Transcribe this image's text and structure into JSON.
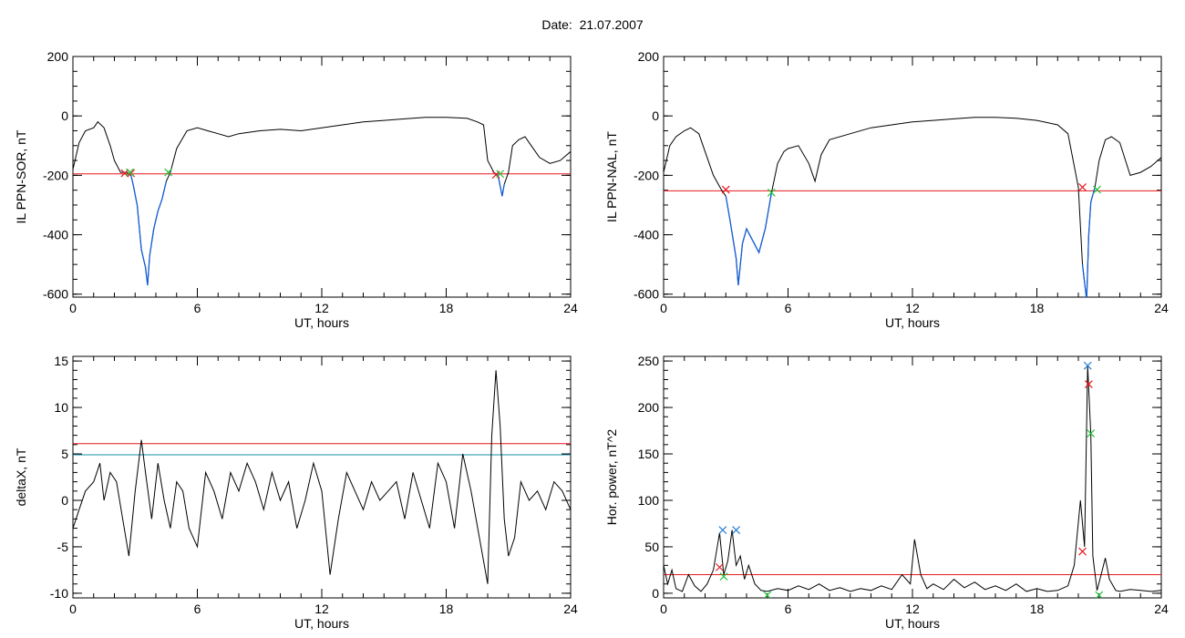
{
  "title": "Date:  21.07.2007",
  "colors": {
    "trace": "#000000",
    "highlight": "#1560d8",
    "threshold_red": "#e8191e",
    "threshold_blue": "#1a8fa8",
    "marker_red": "#e8191e",
    "marker_green": "#22c33a",
    "marker_blue": "#2a7fd4"
  },
  "chart_data": [
    {
      "type": "line",
      "ylabel": "IL PPN-SOR, nT",
      "xlabel": "UT, hours",
      "xlim": [
        0,
        24
      ],
      "ylim": [
        -610,
        200
      ],
      "xticks": [
        0,
        6,
        12,
        18,
        24
      ],
      "yticks": [
        -600,
        -400,
        -200,
        0,
        200
      ],
      "x_minor_step": 1,
      "y_minor_step": 50,
      "series": [
        {
          "x": [
            0,
            0.3,
            0.6,
            1.0,
            1.2,
            1.5,
            1.8,
            2.0,
            2.3,
            2.6,
            2.8,
            2.9,
            3.1,
            3.3,
            3.5,
            3.6,
            3.7,
            3.9,
            4.1,
            4.3,
            4.5,
            4.7,
            5.0,
            5.5,
            6.0,
            6.5,
            7.0,
            7.5,
            8.0,
            9.0,
            10.0,
            11.0,
            12.0,
            13.0,
            14.0,
            15.0,
            16.0,
            17.0,
            18.0,
            19.0,
            19.5,
            19.8,
            20.0,
            20.3,
            20.5,
            20.7,
            20.8,
            21.0,
            21.2,
            21.5,
            21.8,
            22.1,
            22.5,
            23.0,
            23.5,
            24.0
          ],
          "y": [
            -180,
            -90,
            -50,
            -40,
            -20,
            -40,
            -100,
            -150,
            -190,
            -190,
            -200,
            -230,
            -300,
            -450,
            -510,
            -570,
            -470,
            -380,
            -320,
            -280,
            -220,
            -190,
            -110,
            -50,
            -40,
            -50,
            -60,
            -70,
            -60,
            -50,
            -45,
            -50,
            -40,
            -30,
            -20,
            -15,
            -10,
            -5,
            -5,
            -8,
            -20,
            -30,
            -150,
            -190,
            -200,
            -270,
            -230,
            -190,
            -100,
            -80,
            -70,
            -100,
            -140,
            -160,
            -150,
            -120
          ]
        }
      ],
      "highlight_segments": [
        [
          2.7,
          4.6
        ],
        [
          20.3,
          20.9
        ]
      ],
      "threshold_lines": [
        {
          "y": -195,
          "color": "#e8191e"
        }
      ],
      "markers": [
        {
          "x": 2.5,
          "y": -193,
          "color": "#e8191e"
        },
        {
          "x": 2.8,
          "y": -193,
          "color": "#e8191e"
        },
        {
          "x": 2.75,
          "y": -190,
          "color": "#22c33a"
        },
        {
          "x": 4.6,
          "y": -190,
          "color": "#22c33a"
        },
        {
          "x": 20.4,
          "y": -198,
          "color": "#e8191e"
        },
        {
          "x": 20.6,
          "y": -195,
          "color": "#22c33a"
        }
      ]
    },
    {
      "type": "line",
      "ylabel": "IL PPN-NAL, nT",
      "xlabel": "UT, hours",
      "xlim": [
        0,
        24
      ],
      "ylim": [
        -610,
        200
      ],
      "xticks": [
        0,
        6,
        12,
        18,
        24
      ],
      "yticks": [
        -600,
        -400,
        -200,
        0,
        200
      ],
      "x_minor_step": 1,
      "y_minor_step": 50,
      "series": [
        {
          "x": [
            0,
            0.3,
            0.6,
            1.0,
            1.3,
            1.7,
            2.0,
            2.4,
            2.8,
            3.0,
            3.2,
            3.5,
            3.6,
            3.8,
            4.0,
            4.3,
            4.6,
            4.9,
            5.2,
            5.5,
            5.8,
            6.0,
            6.5,
            7.0,
            7.3,
            7.6,
            8.0,
            9.0,
            10.0,
            11.0,
            12.0,
            13.0,
            14.0,
            15.0,
            16.0,
            17.0,
            18.0,
            19.0,
            19.5,
            20.0,
            20.2,
            20.4,
            20.5,
            20.6,
            20.8,
            21.0,
            21.3,
            21.6,
            22.0,
            22.5,
            23.0,
            23.5,
            24.0
          ],
          "y": [
            -190,
            -100,
            -70,
            -50,
            -40,
            -60,
            -120,
            -200,
            -250,
            -270,
            -350,
            -480,
            -570,
            -430,
            -380,
            -420,
            -460,
            -380,
            -260,
            -160,
            -120,
            -110,
            -100,
            -160,
            -220,
            -130,
            -80,
            -60,
            -40,
            -30,
            -20,
            -15,
            -10,
            -5,
            -5,
            -8,
            -15,
            -30,
            -60,
            -240,
            -500,
            -620,
            -400,
            -290,
            -240,
            -150,
            -80,
            -70,
            -90,
            -200,
            -190,
            -170,
            -140
          ]
        }
      ],
      "highlight_segments": [
        [
          2.9,
          5.2
        ],
        [
          20.2,
          20.9
        ]
      ],
      "threshold_lines": [
        {
          "y": -252,
          "color": "#e8191e"
        }
      ],
      "markers": [
        {
          "x": 3.0,
          "y": -248,
          "color": "#e8191e"
        },
        {
          "x": 5.2,
          "y": -258,
          "color": "#22c33a"
        },
        {
          "x": 20.2,
          "y": -240,
          "color": "#e8191e"
        },
        {
          "x": 20.9,
          "y": -248,
          "color": "#22c33a"
        }
      ]
    },
    {
      "type": "line",
      "ylabel": "deltaX, nT",
      "xlabel": "UT, hours",
      "xlim": [
        0,
        24
      ],
      "ylim": [
        -10.5,
        15.5
      ],
      "xticks": [
        0,
        6,
        12,
        18,
        24
      ],
      "yticks": [
        -10,
        -5,
        0,
        5,
        10,
        15
      ],
      "x_minor_step": 1,
      "y_minor_step": 1,
      "series": [
        {
          "x": [
            0,
            0.3,
            0.6,
            1.0,
            1.3,
            1.5,
            1.8,
            2.1,
            2.4,
            2.7,
            3.0,
            3.3,
            3.5,
            3.8,
            4.1,
            4.4,
            4.7,
            5.0,
            5.3,
            5.6,
            6.0,
            6.4,
            6.8,
            7.2,
            7.6,
            8.0,
            8.4,
            8.8,
            9.2,
            9.6,
            10.0,
            10.4,
            10.8,
            11.2,
            11.6,
            12.0,
            12.4,
            12.8,
            13.2,
            13.6,
            14.0,
            14.4,
            14.8,
            15.2,
            15.6,
            16.0,
            16.4,
            16.8,
            17.2,
            17.6,
            18.0,
            18.4,
            18.8,
            19.2,
            19.6,
            20.0,
            20.2,
            20.4,
            20.6,
            20.8,
            21.0,
            21.3,
            21.6,
            22.0,
            22.4,
            22.8,
            23.2,
            23.6,
            24.0
          ],
          "y": [
            -3,
            -1,
            1,
            2,
            4,
            0,
            3,
            2,
            -2,
            -6,
            1,
            6.5,
            3,
            -2,
            4,
            0,
            -3,
            2,
            1,
            -3,
            -5,
            3,
            1,
            -2,
            3,
            1,
            4,
            2,
            -1,
            3,
            0,
            2,
            -3,
            0,
            4,
            1,
            -8,
            -2,
            3,
            1,
            -1,
            2,
            0,
            1,
            2,
            -2,
            3,
            0,
            -3,
            4,
            2,
            -3,
            5,
            1,
            -4,
            -9,
            7,
            14,
            8,
            -2,
            -6,
            -4,
            2,
            0,
            1,
            -1,
            2,
            1,
            -1
          ]
        }
      ],
      "highlight_segments": [],
      "threshold_lines": [
        {
          "y": 6.1,
          "color": "#e8191e"
        },
        {
          "y": 4.9,
          "color": "#1a8fa8"
        }
      ],
      "markers": []
    },
    {
      "type": "line",
      "ylabel": "Hor. power, nT^2",
      "xlabel": "UT, hours",
      "xlim": [
        0,
        24
      ],
      "ylim": [
        -5,
        255
      ],
      "xticks": [
        0,
        6,
        12,
        18,
        24
      ],
      "yticks": [
        0,
        50,
        100,
        150,
        200,
        250
      ],
      "x_minor_step": 1,
      "y_minor_step": 10,
      "series": [
        {
          "x": [
            0,
            0.2,
            0.4,
            0.6,
            0.9,
            1.2,
            1.5,
            1.8,
            2.1,
            2.4,
            2.7,
            2.9,
            3.1,
            3.3,
            3.5,
            3.7,
            3.9,
            4.1,
            4.4,
            4.7,
            5.0,
            5.5,
            6.0,
            6.5,
            7.0,
            7.5,
            8.0,
            8.5,
            9.0,
            9.5,
            10.0,
            10.5,
            11.0,
            11.5,
            11.9,
            12.1,
            12.4,
            12.7,
            13.0,
            13.5,
            14.0,
            14.5,
            15.0,
            15.5,
            16.0,
            16.5,
            17.0,
            17.5,
            18.0,
            18.5,
            19.0,
            19.5,
            19.8,
            20.1,
            20.3,
            20.45,
            20.6,
            20.7,
            20.9,
            21.1,
            21.3,
            21.5,
            21.8,
            22.0,
            22.5,
            23.0,
            23.5,
            24.0
          ],
          "y": [
            30,
            10,
            25,
            5,
            2,
            20,
            8,
            2,
            10,
            25,
            65,
            20,
            35,
            68,
            30,
            40,
            15,
            30,
            10,
            3,
            2,
            5,
            3,
            8,
            4,
            10,
            3,
            6,
            2,
            5,
            3,
            8,
            4,
            20,
            10,
            58,
            20,
            5,
            10,
            4,
            15,
            6,
            12,
            4,
            8,
            3,
            10,
            2,
            5,
            2,
            3,
            8,
            30,
            100,
            50,
            245,
            170,
            40,
            3,
            20,
            38,
            15,
            3,
            2,
            4,
            3,
            2,
            3
          ]
        }
      ],
      "highlight_segments": [],
      "threshold_lines": [
        {
          "y": 20,
          "color": "#e8191e"
        }
      ],
      "markers": [
        {
          "x": 2.85,
          "y": 68,
          "color": "#2a7fd4"
        },
        {
          "x": 3.5,
          "y": 68,
          "color": "#2a7fd4"
        },
        {
          "x": 2.7,
          "y": 28,
          "color": "#e8191e"
        },
        {
          "x": 2.9,
          "y": 18,
          "color": "#22c33a"
        },
        {
          "x": 5.0,
          "y": -2,
          "color": "#22c33a"
        },
        {
          "x": 20.45,
          "y": 245,
          "color": "#2a7fd4"
        },
        {
          "x": 20.5,
          "y": 225,
          "color": "#e8191e"
        },
        {
          "x": 20.6,
          "y": 172,
          "color": "#22c33a"
        },
        {
          "x": 20.2,
          "y": 45,
          "color": "#e8191e"
        },
        {
          "x": 21.0,
          "y": -2,
          "color": "#22c33a"
        }
      ]
    }
  ]
}
